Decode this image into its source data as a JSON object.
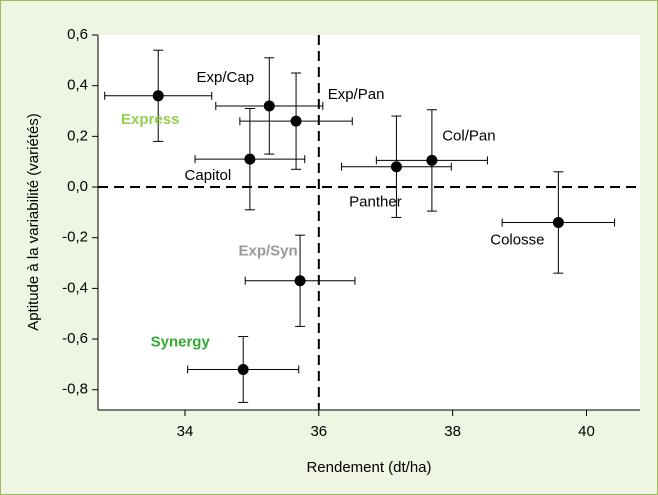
{
  "chart_data": {
    "type": "scatter",
    "xlabel": "Rendement (dt/ha)",
    "ylabel": "Aptitude à la variabilité (variétés)",
    "labels": [
      "Express",
      "Exp/Cap",
      "Exp/Pan",
      "Capitol",
      "Panther",
      "Col/Pan",
      "Colosse",
      "Exp/Syn",
      "Synergy"
    ],
    "label_colors": [
      "#92d050",
      "#000000",
      "#000000",
      "#000000",
      "#000000",
      "#000000",
      "#000000",
      "#999999",
      "#33aa33"
    ],
    "x": [
      33.6,
      35.26,
      35.66,
      34.97,
      37.16,
      37.69,
      39.58,
      35.72,
      34.87
    ],
    "values": [
      0.36,
      0.32,
      0.26,
      0.11,
      0.08,
      0.105,
      -0.14,
      -0.37,
      -0.72
    ],
    "xerr": [
      0.8,
      0.8,
      0.84,
      0.82,
      0.82,
      0.83,
      0.84,
      0.82,
      0.83
    ],
    "yerr": [
      0.18,
      0.19,
      0.19,
      0.2,
      0.2,
      0.2,
      0.2,
      0.18,
      0.13
    ],
    "color": "#000000",
    "vline": 36,
    "hline": 0,
    "xlim": [
      32.7,
      40.8
    ],
    "xticks": [
      34,
      36,
      38,
      40
    ],
    "ylim": [
      -0.88,
      0.6
    ],
    "yticks": [
      {
        "value": 0.6,
        "label": "0,6"
      },
      {
        "value": 0.4,
        "label": "0,4"
      },
      {
        "value": 0.2,
        "label": "0,2"
      },
      {
        "value": 0,
        "label": "0,0"
      },
      {
        "value": -0.2,
        "label": "-0,2"
      },
      {
        "value": -0.4,
        "label": "-0,4"
      },
      {
        "value": -0.6,
        "label": "-0,6"
      },
      {
        "value": -0.8,
        "label": "-0,8"
      }
    ],
    "grid": false
  }
}
